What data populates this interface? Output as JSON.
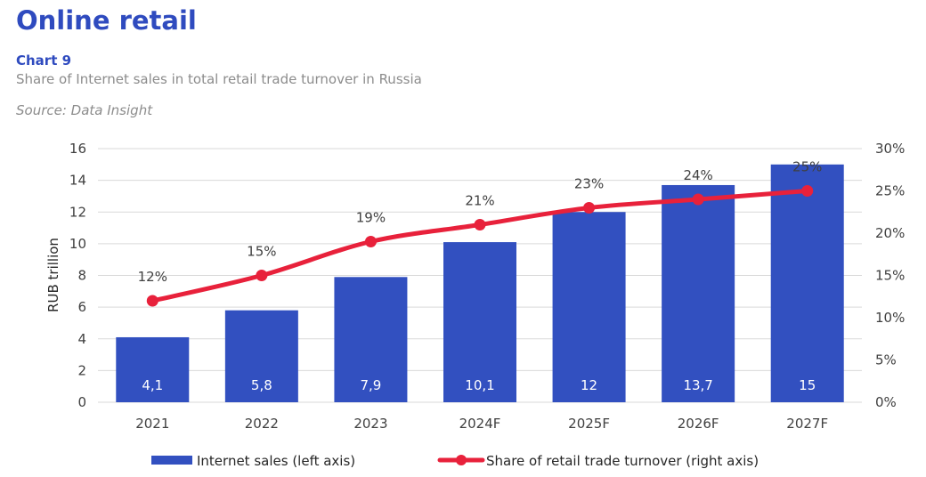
{
  "header": {
    "title": "Online retail",
    "chart_number": "Chart 9",
    "subtitle": "Share of Internet sales in total retail trade turnover in Russia",
    "source": "Source: Data Insight"
  },
  "colors": {
    "bar": "#3250c0",
    "line": "#e8213b",
    "grid": "#d9d9d9",
    "title": "#2f4bbf"
  },
  "chart_data": {
    "type": "bar",
    "categories": [
      "2021",
      "2022",
      "2023",
      "2024F",
      "2025F",
      "2026F",
      "2027F"
    ],
    "series": [
      {
        "name": "Internet sales (left axis)",
        "type": "bar",
        "axis": "left",
        "values": [
          4.1,
          5.8,
          7.9,
          10.1,
          12,
          13.7,
          15
        ],
        "labels": [
          "4,1",
          "5,8",
          "7,9",
          "10,1",
          "12",
          "13,7",
          "15"
        ]
      },
      {
        "name": "Share of retail trade turnover (right axis)",
        "type": "line",
        "axis": "right",
        "values": [
          12,
          15,
          19,
          21,
          23,
          24,
          25
        ],
        "labels": [
          "12%",
          "15%",
          "19%",
          "21%",
          "23%",
          "24%",
          "25%"
        ]
      }
    ],
    "ylabel": "RUB trillion",
    "ylim": [
      0,
      16
    ],
    "yticks": [
      "0",
      "2",
      "4",
      "6",
      "8",
      "10",
      "12",
      "14",
      "16"
    ],
    "y2lim": [
      0,
      30
    ],
    "y2ticks": [
      "0%",
      "5%",
      "10%",
      "15%",
      "20%",
      "25%",
      "30%"
    ],
    "grid": true,
    "legend": "bottom"
  }
}
